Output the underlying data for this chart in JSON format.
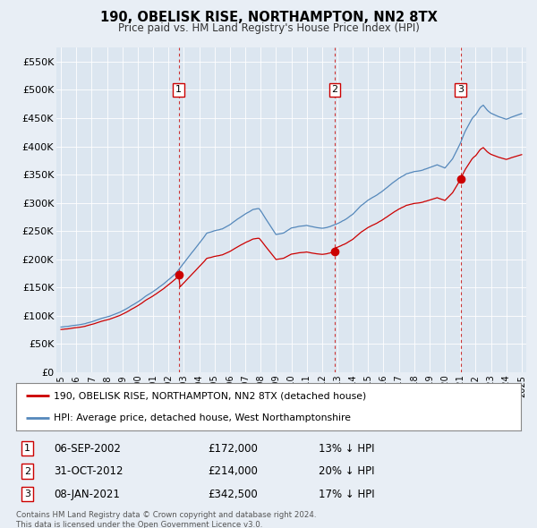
{
  "title": "190, OBELISK RISE, NORTHAMPTON, NN2 8TX",
  "subtitle": "Price paid vs. HM Land Registry's House Price Index (HPI)",
  "background_color": "#e8eef5",
  "plot_bg_color": "#dce6f0",
  "ylim": [
    0,
    575000
  ],
  "yticks": [
    0,
    50000,
    100000,
    150000,
    200000,
    250000,
    300000,
    350000,
    400000,
    450000,
    500000,
    550000
  ],
  "ytick_labels": [
    "£0",
    "£50K",
    "£100K",
    "£150K",
    "£200K",
    "£250K",
    "£300K",
    "£350K",
    "£400K",
    "£450K",
    "£500K",
    "£550K"
  ],
  "sales": [
    {
      "date_num": 2002.67,
      "price": 172000,
      "label": "1"
    },
    {
      "date_num": 2012.83,
      "price": 214000,
      "label": "2"
    },
    {
      "date_num": 2021.03,
      "price": 342500,
      "label": "3"
    }
  ],
  "sale_dates": [
    "06-SEP-2002",
    "31-OCT-2012",
    "08-JAN-2021"
  ],
  "sale_prices": [
    "£172,000",
    "£214,000",
    "£342,500"
  ],
  "sale_hpi": [
    "13% ↓ HPI",
    "20% ↓ HPI",
    "17% ↓ HPI"
  ],
  "red_line_color": "#cc0000",
  "blue_line_color": "#5588bb",
  "vline_color": "#cc3333",
  "legend_label_red": "190, OBELISK RISE, NORTHAMPTON, NN2 8TX (detached house)",
  "legend_label_blue": "HPI: Average price, detached house, West Northamptonshire",
  "footer": "Contains HM Land Registry data © Crown copyright and database right 2024.\nThis data is licensed under the Open Government Licence v3.0."
}
